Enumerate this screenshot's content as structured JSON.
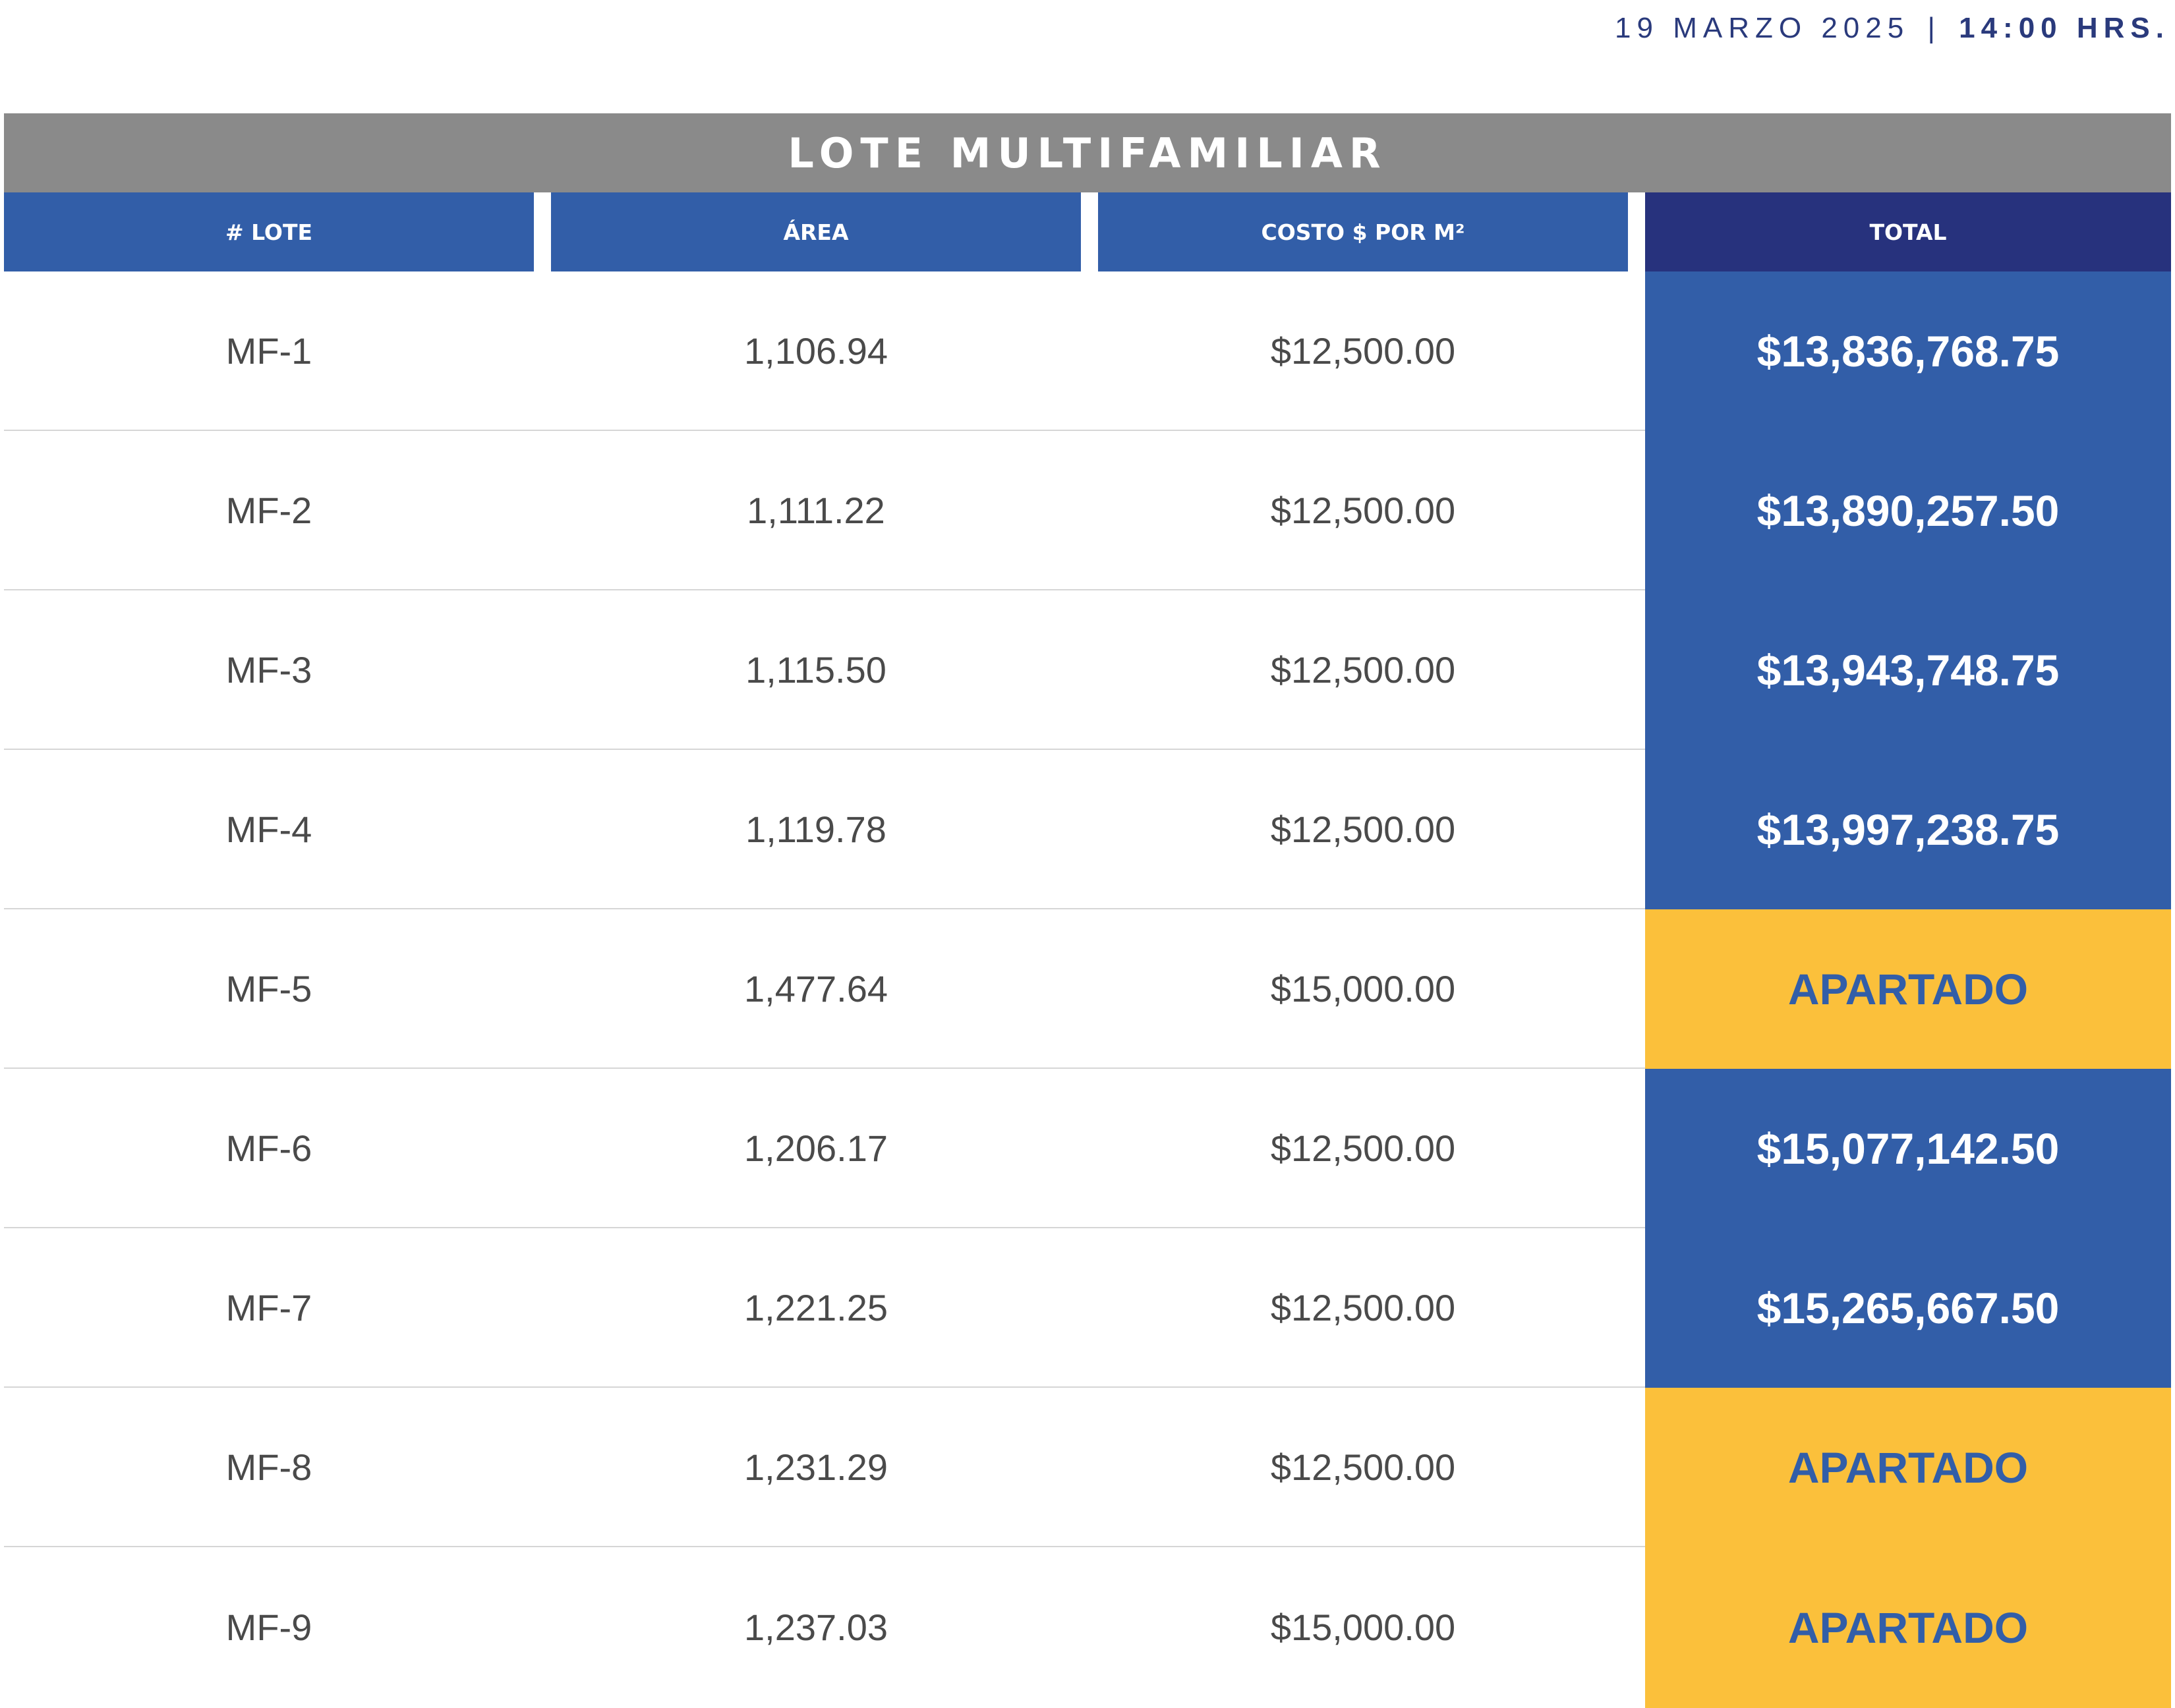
{
  "timestamp": {
    "date": "19 MARZO 2025",
    "separator": "|",
    "time": "14:00 HRS."
  },
  "table": {
    "title": "LOTE MULTIFAMILIAR",
    "headers": [
      "# LOTE",
      "ÁREA",
      "COSTO $ POR M²",
      "TOTAL"
    ],
    "rows": [
      {
        "lote": "MF-1",
        "area": "1,106.94",
        "costo": "$12,500.00",
        "total": "$13,836,768.75",
        "status": "available"
      },
      {
        "lote": "MF-2",
        "area": "1,111.22",
        "costo": "$12,500.00",
        "total": "$13,890,257.50",
        "status": "available"
      },
      {
        "lote": "MF-3",
        "area": "1,115.50",
        "costo": "$12,500.00",
        "total": "$13,943,748.75",
        "status": "available"
      },
      {
        "lote": "MF-4",
        "area": "1,119.78",
        "costo": "$12,500.00",
        "total": "$13,997,238.75",
        "status": "available"
      },
      {
        "lote": "MF-5",
        "area": "1,477.64",
        "costo": "$15,000.00",
        "total": "APARTADO",
        "status": "reserved"
      },
      {
        "lote": "MF-6",
        "area": "1,206.17",
        "costo": "$12,500.00",
        "total": "$15,077,142.50",
        "status": "available"
      },
      {
        "lote": "MF-7",
        "area": "1,221.25",
        "costo": "$12,500.00",
        "total": "$15,265,667.50",
        "status": "available"
      },
      {
        "lote": "MF-8",
        "area": "1,231.29",
        "costo": "$12,500.00",
        "total": "APARTADO",
        "status": "reserved"
      },
      {
        "lote": "MF-9",
        "area": "1,237.03",
        "costo": "$15,000.00",
        "total": "APARTADO",
        "status": "reserved"
      }
    ]
  },
  "colors": {
    "title_bar": "#8a8a8a",
    "header": "#325ea8",
    "header_total": "#27327d",
    "total_available": "#325ea8",
    "total_reserved": "#fbc03b",
    "stamp_text": "#2a3a7c"
  }
}
